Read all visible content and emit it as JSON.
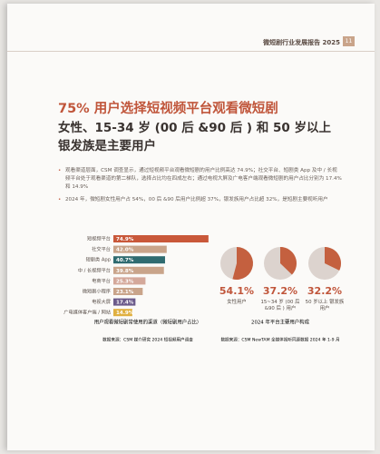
{
  "header": {
    "title": "微短剧行业发展报告 2025",
    "page": "11"
  },
  "title": [
    "75% 用户选择短视频平台观看微短剧",
    "女性、15-34 岁 (00 后 &90 后 ) 和 50 岁以上",
    "银发族是主要用户"
  ],
  "bullets": [
    "观看渠道层面，CSM 调查显示，通过短视频平台观看微短剧的用户比例高达 74.9%；社交平台、短剧类 App 及中 / 长视频平台处于观看渠道的第二梯队，选择占比均在四成左右；通过电视大屏及广电客户端观看微短剧的用户占比分别为 17.4% 和 14.9%",
    "2024 年，微短剧女性用户占 54%，00 后 &90 后用户比例超 37%，银发族用户占比超 32%，是短剧主要视听用户"
  ],
  "chart_data": [
    {
      "type": "bar",
      "orientation": "horizontal",
      "title": "用户观看微短剧常使用的渠道（微短剧用户占比）",
      "source": "数据来源：CSM 媒介研究 2024 短视频用户调查",
      "categories": [
        "短视频平台",
        "社交平台",
        "短剧类 App",
        "中 / 长视频平台",
        "电商平台",
        "微短剧小程序",
        "电视大屏",
        "广电媒体客户端 / 网站"
      ],
      "values": [
        74.9,
        42.0,
        40.7,
        39.8,
        25.3,
        23.1,
        17.4,
        14.9
      ],
      "value_labels": [
        "74.9%",
        "42.0%",
        "40.7%",
        "39.8%",
        "25.3%",
        "23.1%",
        "17.4%",
        "14.9%"
      ],
      "colors": [
        "#c9583a",
        "#c9a48a",
        "#2f6b70",
        "#c9a48a",
        "#d4a89a",
        "#c9a48a",
        "#6b5a8a",
        "#e0b040"
      ]
    },
    {
      "type": "pie",
      "title": "2024 年平台主要用户构成",
      "source": "数据来源：CSM NewTAM 全媒体视听同源数据 2024 年 1-9 月",
      "categories": [
        "女性用户",
        "15~34 岁 (00 后 &90 后 ) 用户",
        "50 岁以上 银发族用户"
      ],
      "values": [
        54.1,
        37.2,
        32.2
      ],
      "value_labels": [
        "54.1%",
        "37.2%",
        "32.2%"
      ],
      "color": "#c4603f",
      "rest_color": "#dcd3ce"
    }
  ]
}
